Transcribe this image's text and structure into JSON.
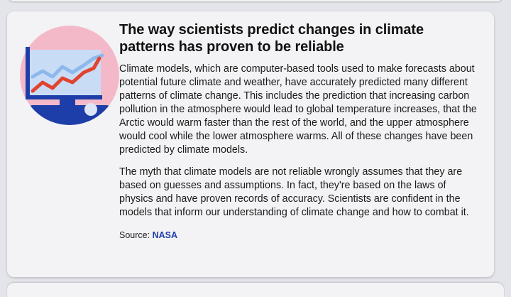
{
  "card": {
    "title": "The way scientists predict changes in climate patterns has proven to be reliable",
    "paragraphs": [
      "Climate models, which are computer-based tools used to make forecasts about potential future climate and weather, have accurately predicted many different patterns of climate change. This includes the prediction that increasing carbon pollution in the atmosphere would lead to global temperature increases, that the Arctic would warm faster than the rest of the world, and the upper atmosphere would cool while the lower atmosphere warms. All of these changes have been predicted by climate models.",
      "The myth that climate models are not reliable wrongly assumes that they are based on guesses and assumptions. In fact, they're based on the laws of physics and have proven records of accuracy. Scientists are confident in the models that inform our understanding of climate change and how to combat it."
    ],
    "source": {
      "label": "Source:",
      "link_text": "NASA"
    }
  },
  "illustration": {
    "icon": "monitor-chart-icon",
    "colors": {
      "circle": "#f4b9c9",
      "screen": "#c9dcf6",
      "frame": "#1d3ea8",
      "line_primary": "#e0442f",
      "line_secondary": "#8eb8ec"
    }
  }
}
